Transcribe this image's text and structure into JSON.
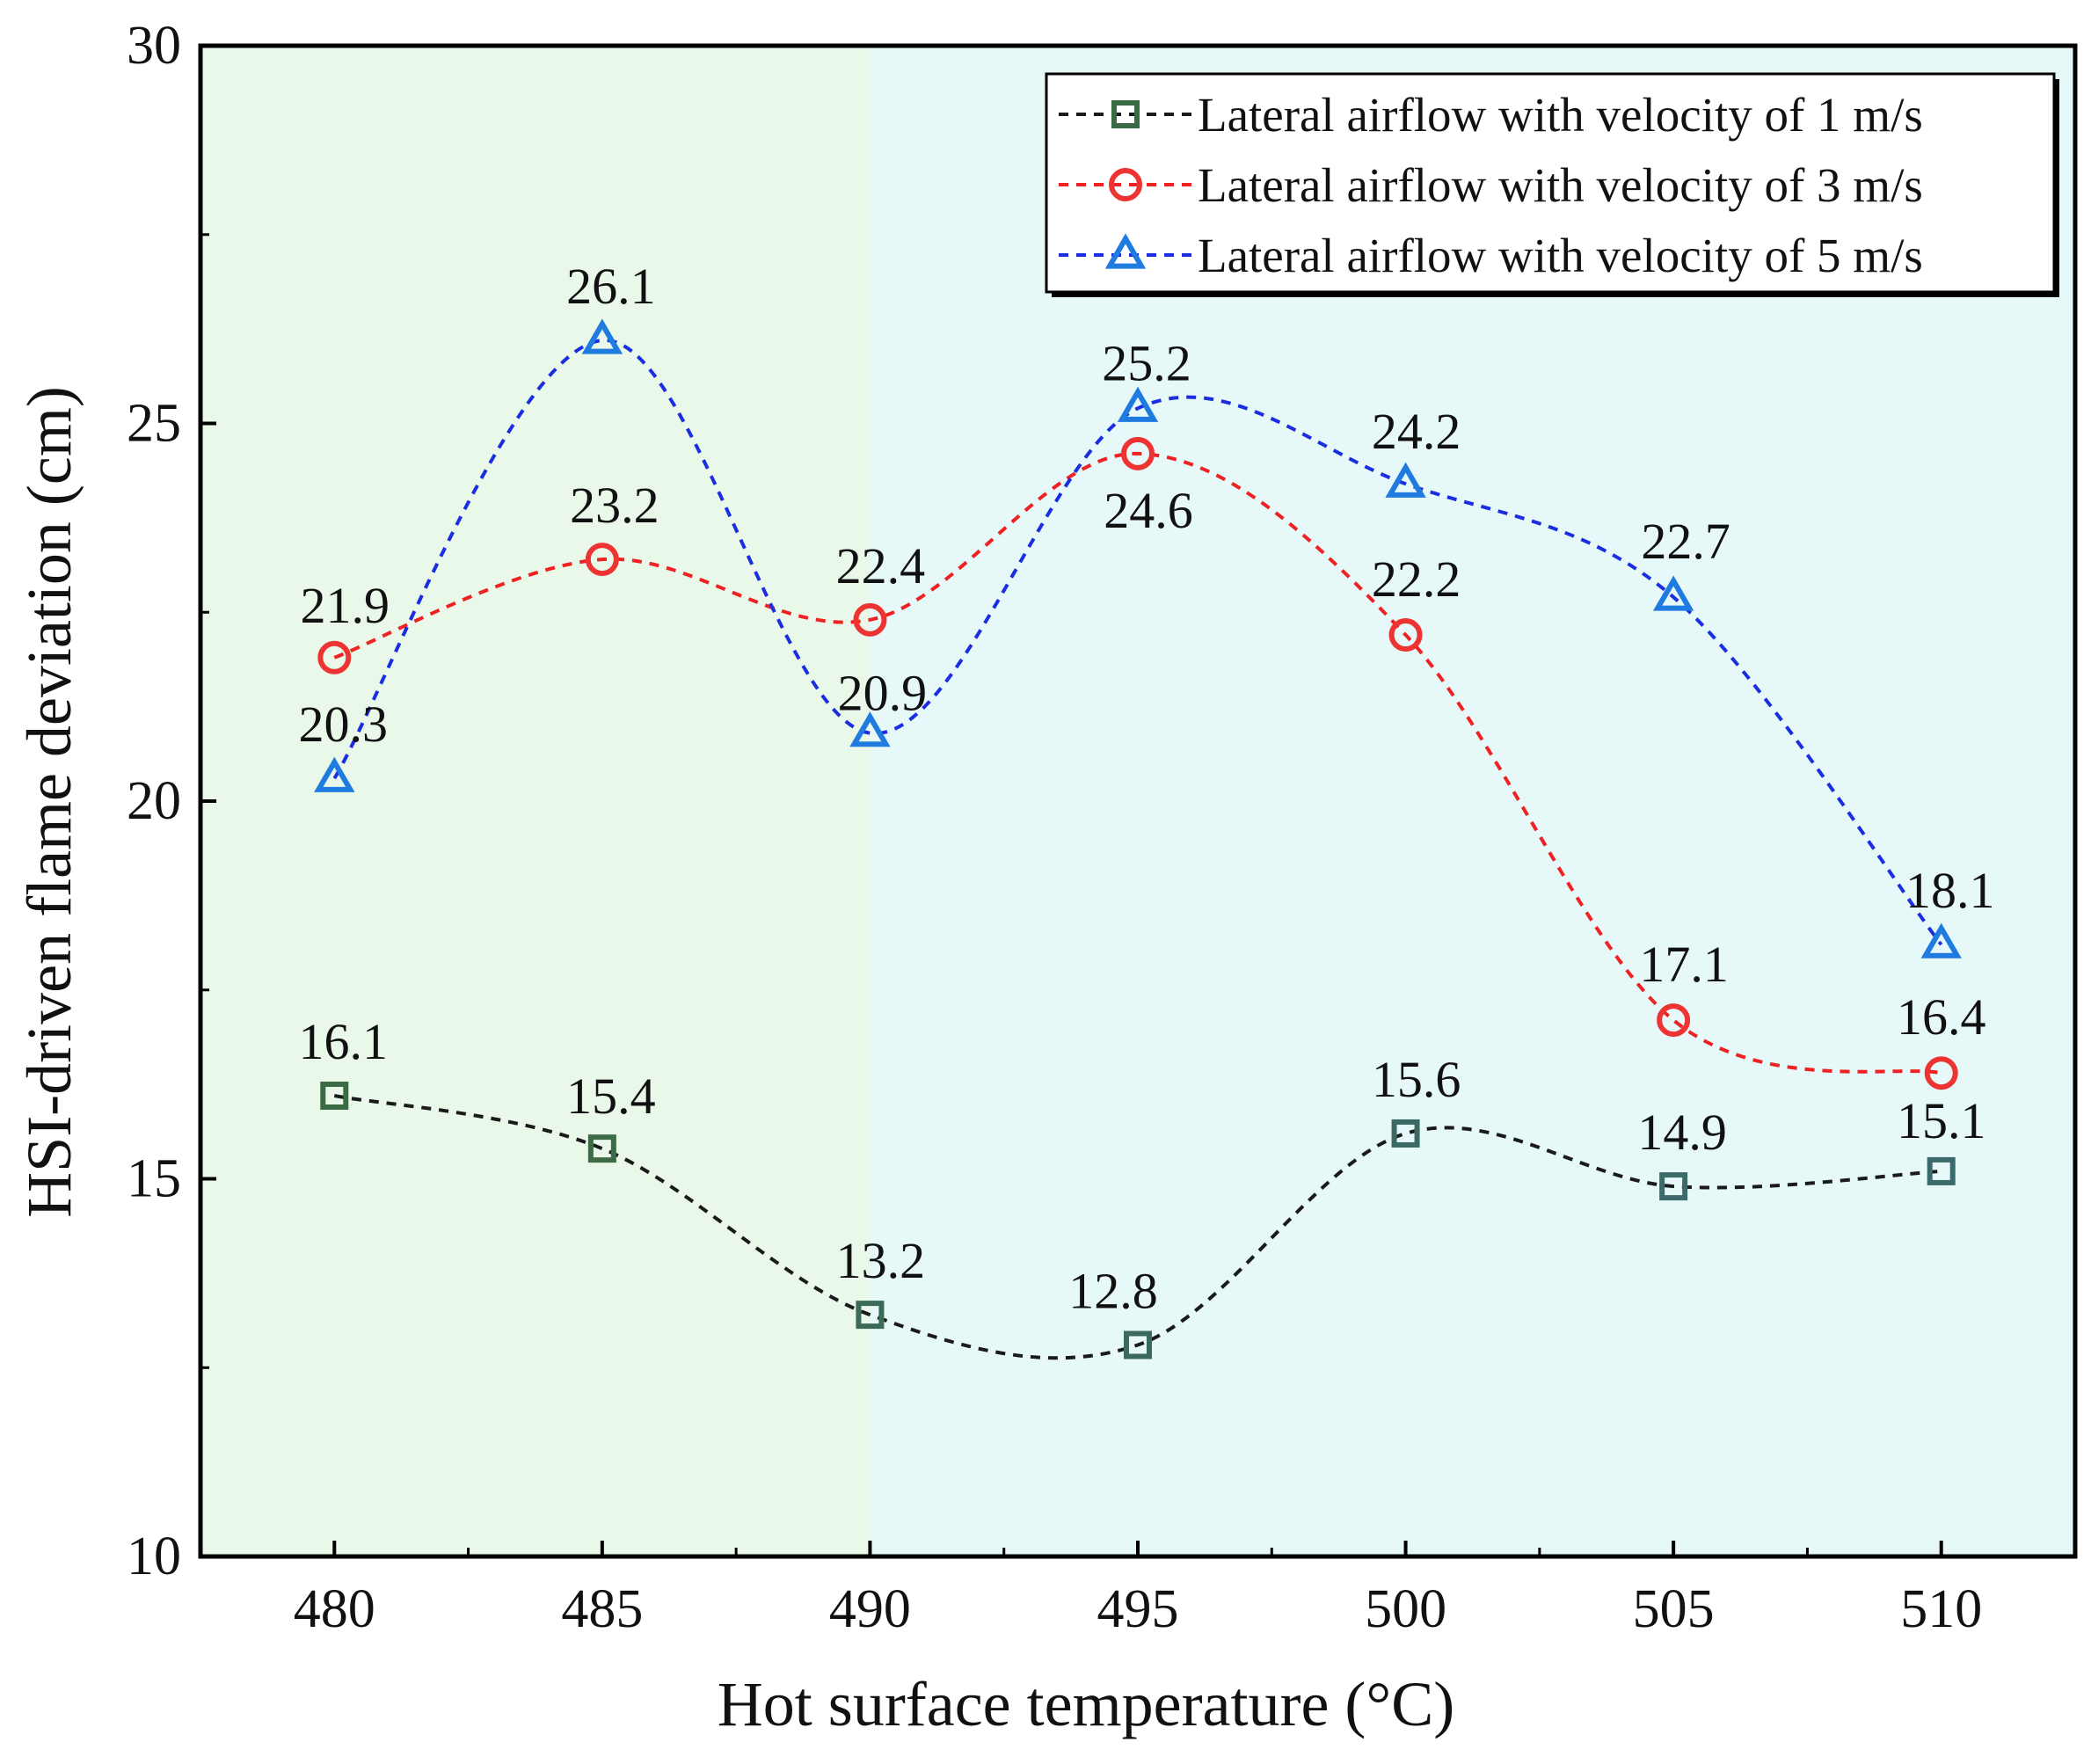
{
  "chart_data": {
    "type": "line",
    "title": "",
    "xlabel": "Hot surface temperature (°C)",
    "ylabel": "HSI-driven flame deviation (cm)",
    "xlim": [
      477.5,
      512.5
    ],
    "ylim": [
      10,
      30
    ],
    "x": [
      480,
      485,
      490,
      495,
      500,
      505,
      510
    ],
    "x_ticks": [
      "480",
      "485",
      "490",
      "495",
      "500",
      "505",
      "510"
    ],
    "y_ticks": [
      "10",
      "15",
      "20",
      "25",
      "30"
    ],
    "y_ticks_values": [
      10,
      15,
      20,
      25,
      30
    ],
    "grid": false,
    "legend_position": "top-right",
    "regions": [
      {
        "from": 477.5,
        "to": 490,
        "color": "#eaf8ea"
      },
      {
        "from": 490,
        "to": 512.5,
        "color": "#e6f8f8"
      }
    ],
    "series": [
      {
        "name": "Lateral airflow with velocity of 1 m/s",
        "marker": "square",
        "line_color": "#1a1a1a",
        "marker_colors": [
          "#3b6b44",
          "#3d6a47",
          "#3b6a56",
          "#3b6a5d",
          "#3b6a64",
          "#3b6a68",
          "#3b6a6b"
        ],
        "values": [
          16.1,
          15.4,
          13.2,
          12.8,
          15.6,
          14.9,
          15.1
        ],
        "labels": [
          "16.1",
          "15.4",
          "13.2",
          "12.8",
          "15.6",
          "14.9",
          "15.1"
        ]
      },
      {
        "name": "Lateral airflow with velocity of 3 m/s",
        "marker": "circle",
        "line_color": "#ee2222",
        "marker_colors": [
          "#ee3333"
        ],
        "values": [
          21.9,
          23.2,
          22.4,
          24.6,
          22.2,
          17.1,
          16.4
        ],
        "labels": [
          "21.9",
          "23.2",
          "22.4",
          "24.6",
          "22.2",
          "17.1",
          "16.4"
        ]
      },
      {
        "name": "Lateral airflow with velocity of 5 m/s",
        "marker": "triangle",
        "line_color": "#1a2ee0",
        "marker_colors": [
          "#1f7be0"
        ],
        "values": [
          20.3,
          26.1,
          20.9,
          25.2,
          24.2,
          22.7,
          18.1
        ],
        "labels": [
          "20.3",
          "26.1",
          "20.9",
          "25.2",
          "24.2",
          "22.7",
          "18.1"
        ]
      }
    ]
  }
}
